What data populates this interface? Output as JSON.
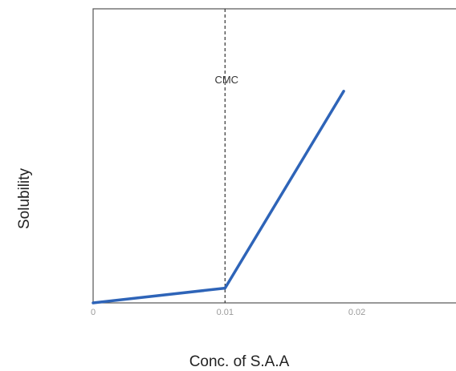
{
  "chart_data": {
    "type": "line",
    "title": "",
    "xlabel": "Conc. of S.A.A",
    "ylabel": "Solubility",
    "xlim": [
      0,
      0.028
    ],
    "ylim": [
      0,
      10
    ],
    "x_tick_labels": [
      "0",
      "0.01",
      "0.02"
    ],
    "grid": false,
    "legend": "none",
    "series": [
      {
        "color": "#2e64b8",
        "x": [
          0,
          0.01,
          0.019
        ],
        "y": [
          0,
          0.5,
          7.2
        ]
      }
    ],
    "annotations": [
      {
        "type": "vline",
        "x": 0.01,
        "label": "CMC",
        "style": "dashed"
      }
    ]
  }
}
